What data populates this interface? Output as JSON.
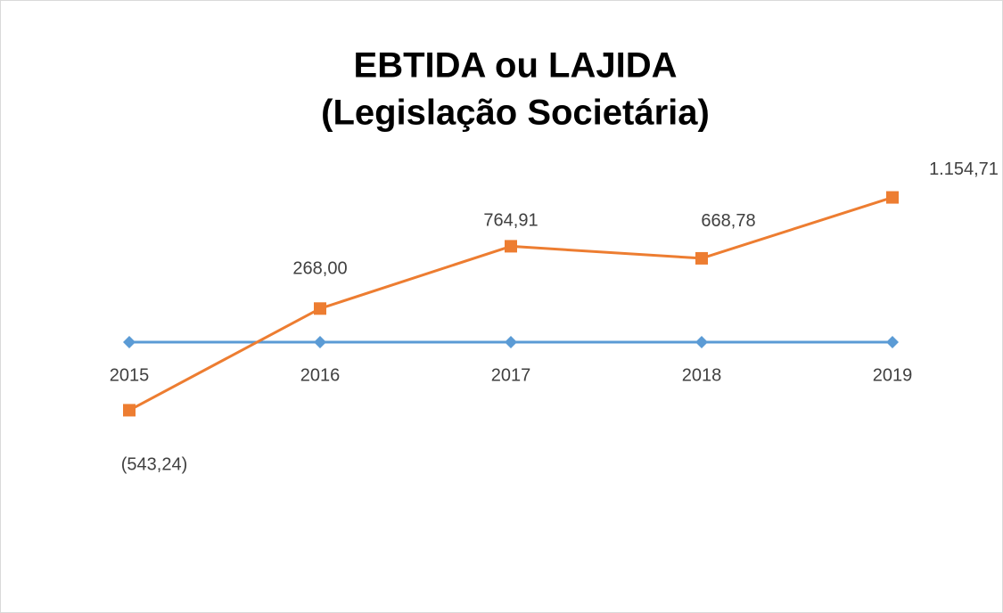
{
  "chart_data": {
    "type": "line",
    "title": [
      "EBTIDA ou LAJIDA",
      "(Legislação Societária)"
    ],
    "categories": [
      "2015",
      "2016",
      "2017",
      "2018",
      "2019"
    ],
    "series": [
      {
        "color": "#5b9bd5",
        "marker": "diamond",
        "values": [
          0,
          0,
          0,
          0,
          0
        ]
      },
      {
        "color": "#ed7d31",
        "marker": "square",
        "values": [
          -543.24,
          268.0,
          764.91,
          668.78,
          1154.71
        ],
        "value_labels": [
          "(543,24)",
          "268,00",
          "764,91",
          "668,78",
          "1.154,71"
        ]
      }
    ],
    "ylim": [
      -1500,
      1500
    ]
  }
}
